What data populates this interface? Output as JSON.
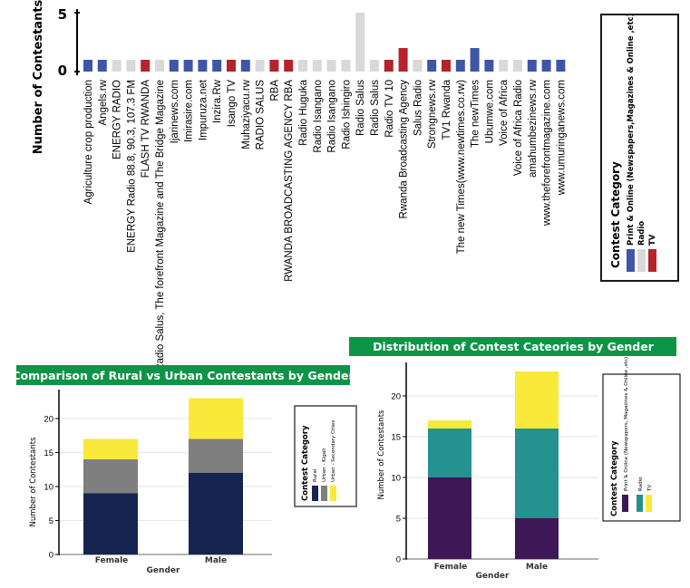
{
  "palette": {
    "print": "#3f56a6",
    "radio": "#d9d9d9",
    "tv": "#b6232a",
    "rural": "#16254f",
    "kigali": "#7f7f7f",
    "secondary": "#f9e93a",
    "print_g": "#3d1756",
    "radio_g": "#24928e",
    "tv_g": "#f9e93a",
    "banner": "#0e9447"
  },
  "chart_data": [
    {
      "type": "bar",
      "title": "",
      "ylabel": "Number of Contestants",
      "xlabel": "",
      "ylim": [
        0,
        5
      ],
      "yticks": [
        0,
        5
      ],
      "categories": [
        "Agriculture crop production",
        "Angels.rw",
        "ENERGY RADIO",
        "ENERGY Radio 88.8, 90.3, 107.3 FM",
        "FLASH TV RWANDA",
        "Radio Salus, The forefront Magazine and The Bridge Magazine",
        "Ijarinews.com",
        "Imirasire.com",
        "Impuruza.net",
        "Inzira.Rw",
        "Isango TV",
        "Muhaziyacu.rw",
        "RADIO SALUS",
        "RBA",
        "RWANDA BROADCASTING AGENCY RBA",
        "Radio Huguka",
        "Radio Isangano",
        "Radio Isangano",
        "Radio Ishingiro",
        "Radio Salus",
        "Radio Salus",
        "Radio TV 10",
        "Rwanda Broadcasting Agency",
        "Salus Radio",
        "Strongnews.rw",
        "TV1 Rwanda",
        "The new Times(www.newtimes.co.rw)",
        "The newTimes",
        "Ubumwe.com",
        "Voice of Africa",
        "Voice of Africa Radio",
        "amahumbezinews.rw",
        "www.theforefrontmagazine.com",
        "www.umuringanews.com"
      ],
      "values": [
        1,
        1,
        1,
        1,
        1,
        1,
        1,
        1,
        1,
        1,
        1,
        1,
        1,
        1,
        1,
        1,
        1,
        1,
        1,
        5,
        1,
        1,
        2,
        1,
        1,
        1,
        1,
        2,
        1,
        1,
        1,
        1,
        1,
        1
      ],
      "category_group": [
        "print",
        "print",
        "radio",
        "radio",
        "tv",
        "radio",
        "print",
        "print",
        "print",
        "print",
        "tv",
        "print",
        "radio",
        "tv",
        "tv",
        "radio",
        "radio",
        "radio",
        "radio",
        "radio",
        "radio",
        "tv",
        "tv",
        "radio",
        "print",
        "tv",
        "print",
        "print",
        "print",
        "radio",
        "radio",
        "print",
        "print",
        "print"
      ],
      "legend": {
        "title": "Contest Category",
        "entries": [
          {
            "name": "Print & Online (Newspapers,Magazines & Online ,etc)",
            "group": "print"
          },
          {
            "name": "Radio",
            "group": "radio"
          },
          {
            "name": "TV",
            "group": "tv"
          }
        ]
      }
    },
    {
      "type": "bar",
      "stacked": true,
      "title": "Comparison of Rural vs Urban Contestants by Gender",
      "xlabel": "Gender",
      "ylabel": "Number of Contestants",
      "ylim": [
        0,
        23
      ],
      "yticks": [
        0,
        5,
        10,
        15,
        20
      ],
      "categories": [
        "Female",
        "Male"
      ],
      "series": [
        {
          "name": "Rural",
          "values": [
            9,
            12
          ],
          "color_key": "rural"
        },
        {
          "name": "Urban - Kigali",
          "values": [
            5,
            5
          ],
          "color_key": "kigali"
        },
        {
          "name": "Urban - Secondary Cities",
          "values": [
            3,
            6
          ],
          "color_key": "secondary"
        }
      ],
      "legend": {
        "title": "Contest Category"
      }
    },
    {
      "type": "bar",
      "stacked": true,
      "title": "Distribution of Contest Cateories by Gender",
      "xlabel": "Gender",
      "ylabel": "Number of Contestants",
      "ylim": [
        0,
        24
      ],
      "yticks": [
        0,
        5,
        10,
        15,
        20
      ],
      "categories": [
        "Female",
        "Male"
      ],
      "series": [
        {
          "name": "Print & Online (Newspapers, Magazines & Online ,etc)",
          "values": [
            10,
            5
          ],
          "color_key": "print_g"
        },
        {
          "name": "Radio",
          "values": [
            6,
            11
          ],
          "color_key": "radio_g"
        },
        {
          "name": "TV",
          "values": [
            1,
            7
          ],
          "color_key": "tv_g"
        }
      ],
      "legend": {
        "title": "Contest Category"
      }
    }
  ]
}
